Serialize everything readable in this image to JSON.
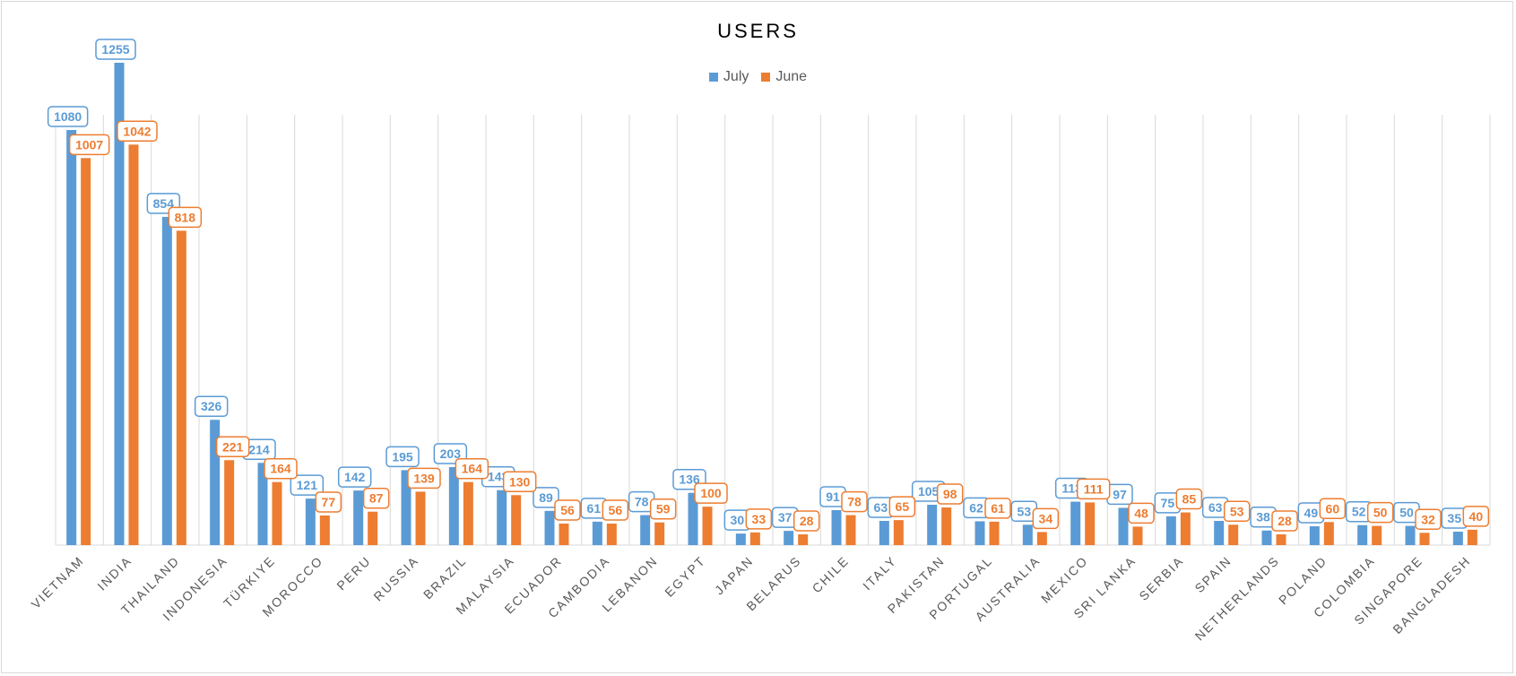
{
  "chart_data": {
    "type": "bar",
    "title": "USERS",
    "categories": [
      "VIETNAM",
      "INDIA",
      "THAILAND",
      "INDONESIA",
      "TÜRKIYE",
      "MOROCCO",
      "PERU",
      "RUSSIA",
      "BRAZIL",
      "MALAYSIA",
      "ECUADOR",
      "CAMBODIA",
      "LEBANON",
      "EGYPT",
      "JAPAN",
      "BELARUS",
      "CHILE",
      "ITALY",
      "PAKISTAN",
      "PORTUGAL",
      "AUSTRALIA",
      "MEXICO",
      "SRI LANKA",
      "SERBIA",
      "SPAIN",
      "NETHERLANDS",
      "POLAND",
      "COLOMBIA",
      "SINGAPORE",
      "BANGLADESH"
    ],
    "series": [
      {
        "name": "July",
        "color": "#5b9bd5",
        "values": [
          1080,
          1255,
          854,
          326,
          214,
          121,
          142,
          195,
          203,
          143,
          89,
          61,
          78,
          136,
          30,
          37,
          91,
          63,
          105,
          62,
          53,
          113,
          97,
          75,
          63,
          38,
          49,
          52,
          50,
          35
        ]
      },
      {
        "name": "June",
        "color": "#ed7d31",
        "values": [
          1007,
          1042,
          818,
          221,
          164,
          77,
          87,
          139,
          164,
          130,
          56,
          56,
          59,
          100,
          33,
          28,
          78,
          65,
          98,
          61,
          34,
          111,
          48,
          85,
          53,
          28,
          60,
          50,
          32,
          40
        ]
      }
    ],
    "ylim": [
      0,
      1400
    ],
    "grid": "vertical",
    "legend": "top-center"
  }
}
